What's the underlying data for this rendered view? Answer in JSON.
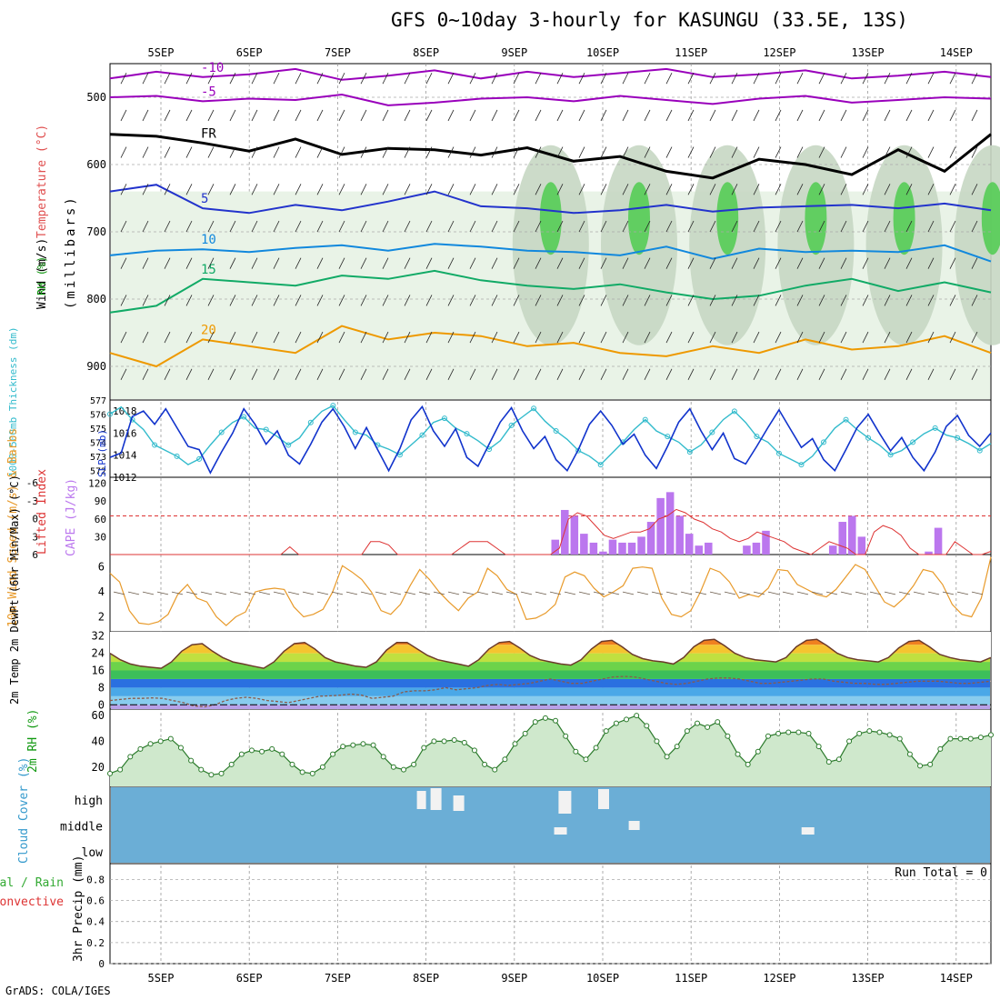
{
  "chart_data": {
    "type": "meteogram",
    "title": "GFS 0~10day 3-hourly for KASUNGU (33.5E, 13S)",
    "credit": "GrADS: COLA/IGES",
    "dates": [
      "5SEP",
      "6SEP",
      "7SEP",
      "8SEP",
      "9SEP",
      "10SEP",
      "11SEP",
      "12SEP",
      "13SEP",
      "14SEP"
    ],
    "time_range_days": [
      -0.45,
      9.3
    ],
    "panels": {
      "upper_air": {
        "ylabel_wind": "Wind (m/s)",
        "ylabel_temp": "Temperature (°C)",
        "ylabel_rh": "RH (%)",
        "ylabel_units": "(millibars)",
        "yrange": [
          450,
          950
        ],
        "yticks": [
          500,
          600,
          700,
          800,
          900
        ],
        "temp_contours": [
          {
            "label": "-10",
            "color": "#9900bb",
            "levels": [
              472,
              462,
              470,
              466,
              458,
              474,
              468,
              460,
              472,
              462,
              470,
              464,
              458,
              470,
              466,
              460,
              472,
              468,
              462,
              470
            ]
          },
          {
            "label": "-5",
            "color": "#9900bb",
            "levels": [
              500,
              498,
              506,
              502,
              504,
              496,
              512,
              508,
              502,
              500,
              506,
              498,
              504,
              510,
              502,
              498,
              508,
              504,
              500,
              502
            ]
          },
          {
            "label": "FR",
            "color": "#000000",
            "levels": [
              555,
              558,
              568,
              580,
              562,
              585,
              576,
              578,
              586,
              575,
              595,
              588,
              610,
              620,
              592,
              600,
              615,
              578,
              610,
              555
            ]
          },
          {
            "label": "5",
            "color": "#2233cc",
            "levels": [
              640,
              630,
              665,
              672,
              660,
              668,
              655,
              640,
              662,
              665,
              672,
              668,
              660,
              670,
              664,
              662,
              660,
              665,
              658,
              668
            ]
          },
          {
            "label": "10",
            "color": "#1188dd",
            "levels": [
              735,
              728,
              726,
              730,
              724,
              720,
              728,
              718,
              722,
              728,
              730,
              735,
              722,
              740,
              725,
              730,
              728,
              730,
              720,
              744
            ]
          },
          {
            "label": "15",
            "color": "#11aa66",
            "levels": [
              820,
              810,
              770,
              775,
              780,
              765,
              770,
              758,
              772,
              780,
              785,
              778,
              790,
              800,
              795,
              780,
              770,
              788,
              775,
              790
            ]
          },
          {
            "label": "20",
            "color": "#ee9900",
            "levels": [
              880,
              900,
              860,
              870,
              880,
              840,
              860,
              850,
              855,
              870,
              865,
              880,
              885,
              870,
              880,
              860,
              875,
              870,
              855,
              880
            ]
          }
        ],
        "rh_shading": "30% 50% 70% 90% bands"
      },
      "slp_thickness": {
        "ylabel_left": "1000-500mb Thickness (dm)",
        "ylabel_right": "SLP (mb)",
        "thickness_ticks": [
          572,
          573,
          574,
          575,
          576,
          577
        ],
        "slp_ticks": [
          1012,
          1014,
          1016,
          1018
        ],
        "slp": [
          1013.8,
          1014.2,
          1017.5,
          1018.0,
          1016.8,
          1018.2,
          1016.5,
          1014.8,
          1014.5,
          1012.4,
          1014.3,
          1016.0,
          1018.2,
          1016.8,
          1015.0,
          1016.2,
          1014.0,
          1013.2,
          1015.0,
          1017.0,
          1018.2,
          1016.6,
          1014.6,
          1016.5,
          1014.5,
          1012.6,
          1014.6,
          1017.2,
          1018.4,
          1016.2,
          1014.8,
          1016.4,
          1013.8,
          1013.0,
          1015.0,
          1017.0,
          1018.3,
          1016.2,
          1014.6,
          1015.7,
          1013.6,
          1012.6,
          1014.5,
          1016.8,
          1018.0,
          1016.7,
          1015.0,
          1015.9,
          1014.0,
          1012.8,
          1014.8,
          1017.0,
          1018.2,
          1016.2,
          1014.5,
          1016.0,
          1013.7,
          1013.2,
          1014.8,
          1016.5,
          1018.1,
          1016.4,
          1014.7,
          1015.5,
          1013.6,
          1012.6,
          1014.5,
          1016.5,
          1017.7,
          1016.0,
          1014.4,
          1015.6,
          1013.8,
          1012.6,
          1014.3,
          1016.6,
          1017.6,
          1015.8,
          1014.8,
          1016.0
        ],
        "thickness": [
          576.0,
          576.5,
          575.6,
          574.9,
          573.8,
          573.4,
          573.0,
          572.4,
          572.8,
          573.8,
          574.7,
          575.4,
          575.8,
          575.0,
          574.9,
          574.4,
          573.8,
          574.3,
          575.4,
          576.2,
          576.6,
          575.6,
          574.7,
          574.5,
          573.8,
          573.5,
          573.1,
          573.8,
          574.5,
          575.4,
          575.7,
          575.0,
          574.6,
          574.1,
          573.5,
          574.1,
          575.2,
          575.8,
          576.4,
          575.5,
          574.8,
          574.2,
          573.4,
          573.0,
          572.4,
          573.2,
          574.0,
          574.9,
          575.6,
          574.8,
          574.4,
          574.0,
          573.3,
          573.8,
          574.7,
          575.6,
          576.2,
          575.4,
          574.4,
          574.0,
          573.2,
          572.8,
          572.4,
          573.0,
          574.0,
          575.0,
          575.6,
          574.9,
          574.3,
          573.8,
          573.1,
          573.4,
          574.0,
          574.6,
          575.0,
          574.5,
          574.3,
          573.9,
          573.4,
          573.9
        ]
      },
      "instability": {
        "ylabel_left": "Lifted Index",
        "ylabel_right": "CAPE (J/kg)",
        "li_ticks": [
          "-6",
          "-3",
          "0",
          "3",
          "6"
        ],
        "cape_ticks": [
          30,
          60,
          90,
          120
        ],
        "li_zero_line": 0,
        "cape": [
          0,
          0,
          0,
          0,
          0,
          0,
          0,
          0,
          0,
          0,
          0,
          0,
          0,
          0,
          0,
          0,
          0,
          0,
          0,
          0,
          0,
          0,
          0,
          0,
          0,
          0,
          0,
          0,
          0,
          0,
          0,
          0,
          0,
          0,
          0,
          0,
          0,
          0,
          0,
          0,
          0,
          0,
          0,
          0,
          0,
          0,
          25,
          75,
          65,
          35,
          20,
          5,
          25,
          20,
          20,
          30,
          55,
          95,
          105,
          65,
          35,
          15,
          20,
          0,
          0,
          0,
          15,
          20,
          40,
          0,
          0,
          0,
          0,
          0,
          0,
          15,
          55,
          65,
          30,
          0,
          0,
          0,
          0,
          0,
          0,
          5,
          45,
          0,
          0,
          0,
          0,
          0
        ],
        "lifted_index": [
          6,
          6,
          6,
          6,
          6,
          6,
          6,
          6,
          6,
          6,
          6,
          6,
          6,
          6,
          6,
          6,
          6,
          6,
          6,
          6,
          4.8,
          6,
          6,
          6,
          6,
          6,
          6,
          6,
          6,
          4,
          4,
          4.5,
          6,
          6,
          6,
          6,
          6,
          6,
          6,
          5,
          4,
          4,
          4,
          5,
          6,
          6,
          6,
          6,
          6,
          6,
          5,
          0.5,
          -0.5,
          0,
          1.5,
          3,
          3.5,
          3,
          2.5,
          2.5,
          2,
          0.5,
          0,
          -1,
          -0.5,
          0.5,
          1,
          2,
          2.5,
          3.5,
          4,
          3.5,
          2.5,
          3,
          3.5,
          4,
          5,
          5.5,
          6,
          5,
          4,
          4.5,
          5,
          6,
          6,
          2.5,
          1.5,
          2,
          3,
          5,
          6,
          6,
          6,
          6,
          4,
          5,
          6,
          6,
          5.5
        ]
      },
      "wind10m": {
        "ylabel": "10m Wind Speed (m/s) & Barbs",
        "yticks": [
          2,
          4,
          6
        ],
        "speed": [
          5.5,
          4.8,
          2.5,
          1.5,
          1.4,
          1.6,
          2.2,
          3.8,
          4.6,
          3.5,
          3.2,
          2.0,
          1.3,
          2.0,
          2.4,
          4.0,
          4.2,
          4.3,
          4.2,
          2.8,
          2.0,
          2.2,
          2.6,
          4.0,
          6.1,
          5.6,
          5.0,
          4.0,
          2.5,
          2.2,
          3.0,
          4.5,
          5.8,
          5.0,
          4.0,
          3.2,
          2.5,
          3.5,
          4.0,
          5.9,
          5.3,
          4.2,
          3.8,
          1.8,
          1.9,
          2.3,
          3.0,
          5.2,
          5.6,
          5.3,
          4.3,
          3.6,
          4.0,
          4.5,
          5.9,
          6.0,
          5.9,
          3.5,
          2.2,
          2.0,
          2.5,
          4.0,
          5.9,
          5.6,
          4.8,
          3.5,
          3.8,
          3.6,
          4.3,
          5.8,
          5.7,
          4.6,
          4.2,
          3.8,
          3.6,
          4.2,
          5.2,
          6.2,
          5.8,
          4.5,
          3.2,
          2.8,
          3.5,
          4.5,
          5.8,
          5.6,
          4.6,
          3.0,
          2.2,
          2.0,
          3.5,
          6.8
        ]
      },
      "temperature": {
        "ylabel": "2m Temp 2m DewPt (6hr Min/Max) (°C)",
        "yticks": [
          0,
          8,
          16,
          24,
          32
        ],
        "temp": [
          24,
          21,
          19,
          18,
          17.5,
          17,
          20,
          25,
          28,
          28.5,
          25,
          22,
          20,
          19,
          18,
          17,
          20,
          25,
          28.5,
          29,
          26,
          22,
          20,
          19,
          18,
          17.5,
          20,
          25.5,
          29,
          29,
          26,
          23,
          21,
          20,
          19,
          18,
          21,
          26,
          29,
          29.5,
          26.5,
          23,
          21,
          20,
          19,
          18.5,
          21,
          26,
          29.5,
          30,
          27,
          23.5,
          21.5,
          20.5,
          20,
          19,
          22,
          27,
          30,
          30.5,
          27.5,
          24,
          22,
          21,
          20.5,
          20,
          22,
          27,
          30,
          30.5,
          27.5,
          24,
          22,
          21,
          20.5,
          20,
          22,
          26.5,
          29.5,
          30,
          27,
          23.5,
          22,
          21,
          20.5,
          20,
          22
        ],
        "dewpoint": [
          2,
          2.5,
          3,
          3,
          3.2,
          3,
          2,
          1,
          -0.5,
          -1,
          0,
          2,
          3,
          3.5,
          3,
          2,
          1.5,
          1,
          2,
          3,
          4,
          4.2,
          4.5,
          5,
          4.5,
          3,
          3.5,
          4,
          6,
          6.5,
          6.5,
          7,
          8,
          7,
          7.5,
          8,
          9,
          9.5,
          9,
          9.5,
          10,
          11,
          12,
          11,
          10,
          10,
          11,
          12,
          13,
          13.2,
          13,
          12,
          11,
          10,
          9.5,
          10,
          11,
          12,
          12.5,
          12.5,
          12,
          11,
          10,
          10,
          10.5,
          11,
          11.5,
          12,
          12,
          11,
          10.5,
          10,
          10,
          9.5,
          9.5,
          10,
          10.5,
          11,
          11,
          11,
          10.5,
          10,
          10,
          10.5,
          11
        ]
      },
      "rh2m": {
        "ylabel": "2m RH (%)",
        "yticks": [
          20,
          40,
          60
        ],
        "rh": [
          15,
          18,
          28,
          34,
          38,
          40,
          42,
          35,
          25,
          18,
          14,
          15,
          22,
          30,
          33,
          32,
          34,
          30,
          22,
          16,
          15,
          20,
          30,
          36,
          37,
          38,
          37,
          28,
          20,
          18,
          22,
          35,
          40,
          40,
          41,
          39,
          33,
          22,
          18,
          26,
          38,
          46,
          55,
          58,
          56,
          44,
          32,
          26,
          35,
          48,
          54,
          57,
          60,
          52,
          40,
          28,
          36,
          48,
          54,
          51,
          55,
          44,
          30,
          22,
          32,
          44,
          46,
          47,
          47,
          46,
          36,
          24,
          26,
          40,
          46,
          48,
          47,
          45,
          42,
          30,
          21,
          22,
          34,
          42,
          42,
          42,
          43,
          45
        ]
      },
      "cloud": {
        "ylabel": "Cloud Cover (%)",
        "levels": [
          "high",
          "middle",
          "low"
        ]
      },
      "precip": {
        "ylabel": "3hr Precip (mm)",
        "legend": [
          "Total / Rain",
          "Convective"
        ],
        "yticks": [
          "0",
          "0.2",
          "0.4",
          "0.6",
          "0.8"
        ],
        "run_total_label": "Run Total = 0",
        "values": []
      }
    }
  }
}
